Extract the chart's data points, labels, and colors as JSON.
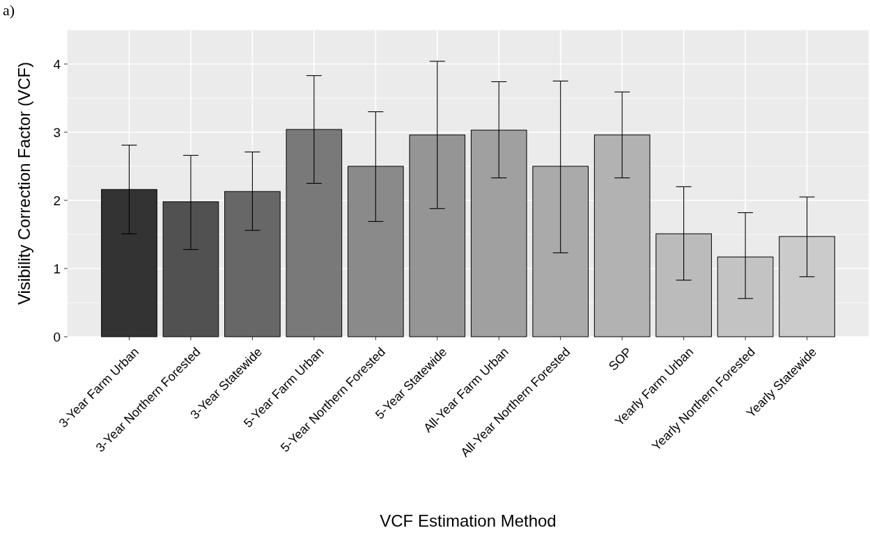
{
  "chart_data": {
    "type": "bar",
    "xlabel": "VCF Estimation Method",
    "ylabel": "Visibility Correction Factor (VCF)",
    "annotations": [
      "a)"
    ],
    "categories": [
      "3-Year Farm Urban",
      "3-Year Northern Forested",
      "3-Year Statewide",
      "5-Year Farm Urban",
      "5-Year Northern Forested",
      "5-Year Statewide",
      "All-Year Farm Urban",
      "All-Year Northern Forested",
      "SOP",
      "Yearly Farm Urban",
      "Yearly Northern Forested",
      "Yearly Statewide"
    ],
    "values": [
      2.16,
      1.98,
      2.13,
      3.04,
      2.5,
      2.96,
      3.03,
      2.5,
      2.96,
      1.51,
      1.17,
      1.47
    ],
    "errors": [
      [
        1.51,
        2.81
      ],
      [
        1.28,
        2.66
      ],
      [
        1.56,
        2.71
      ],
      [
        2.25,
        3.83
      ],
      [
        1.69,
        3.3
      ],
      [
        1.88,
        4.04
      ],
      [
        2.33,
        3.74
      ],
      [
        1.23,
        3.75
      ],
      [
        2.33,
        3.59
      ],
      [
        0.83,
        2.2
      ],
      [
        0.56,
        1.82
      ],
      [
        0.88,
        2.05
      ]
    ],
    "colors": [
      "#333333",
      "#515151",
      "#676767",
      "#797979",
      "#8a8a8a",
      "#959595",
      "#a0a0a0",
      "#aaaaaa",
      "#b2b2b2",
      "#bbbbbb",
      "#c3c3c3",
      "#cbcbcb"
    ],
    "ylim": [
      0,
      4.5
    ],
    "yticks": [
      0,
      1,
      2,
      3,
      4
    ],
    "grid": true
  }
}
